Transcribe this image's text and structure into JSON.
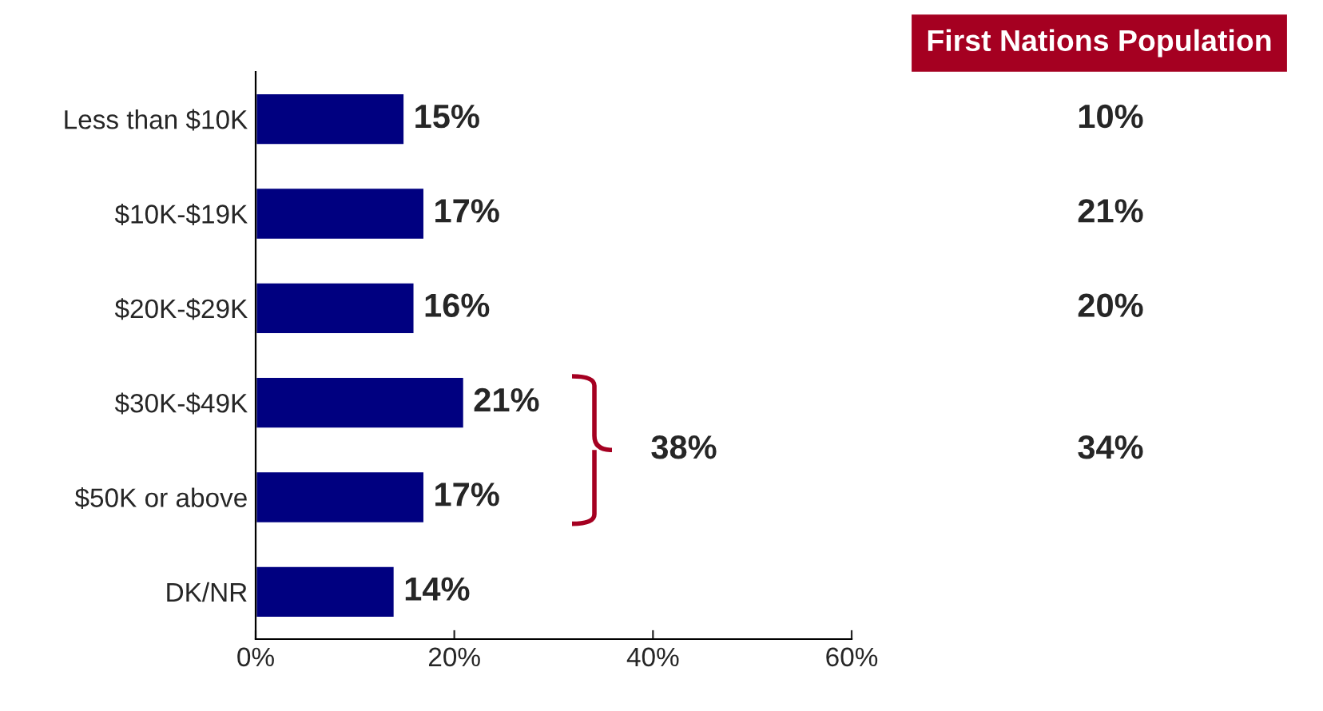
{
  "chart_data": {
    "type": "bar",
    "orientation": "horizontal",
    "categories": [
      "Less than $10K",
      "$10K-$19K",
      "$20K-$29K",
      "$30K-$49K",
      "$50K or above",
      "DK/NR"
    ],
    "values": [
      15,
      17,
      16,
      21,
      17,
      14
    ],
    "color": "#000080",
    "xlim": [
      0,
      60
    ],
    "xticks": [
      {
        "value": 0,
        "label": "0%"
      },
      {
        "value": 20,
        "label": "20%"
      },
      {
        "value": 40,
        "label": "40%"
      },
      {
        "value": 60,
        "label": "60%"
      }
    ],
    "value_labels": [
      "15%",
      "17%",
      "16%",
      "21%",
      "17%",
      "14%"
    ],
    "grid": false,
    "legend": false,
    "annotations": [
      "First Nations Population",
      "10%",
      "21%",
      "20%",
      "34%",
      "38%"
    ]
  }
}
